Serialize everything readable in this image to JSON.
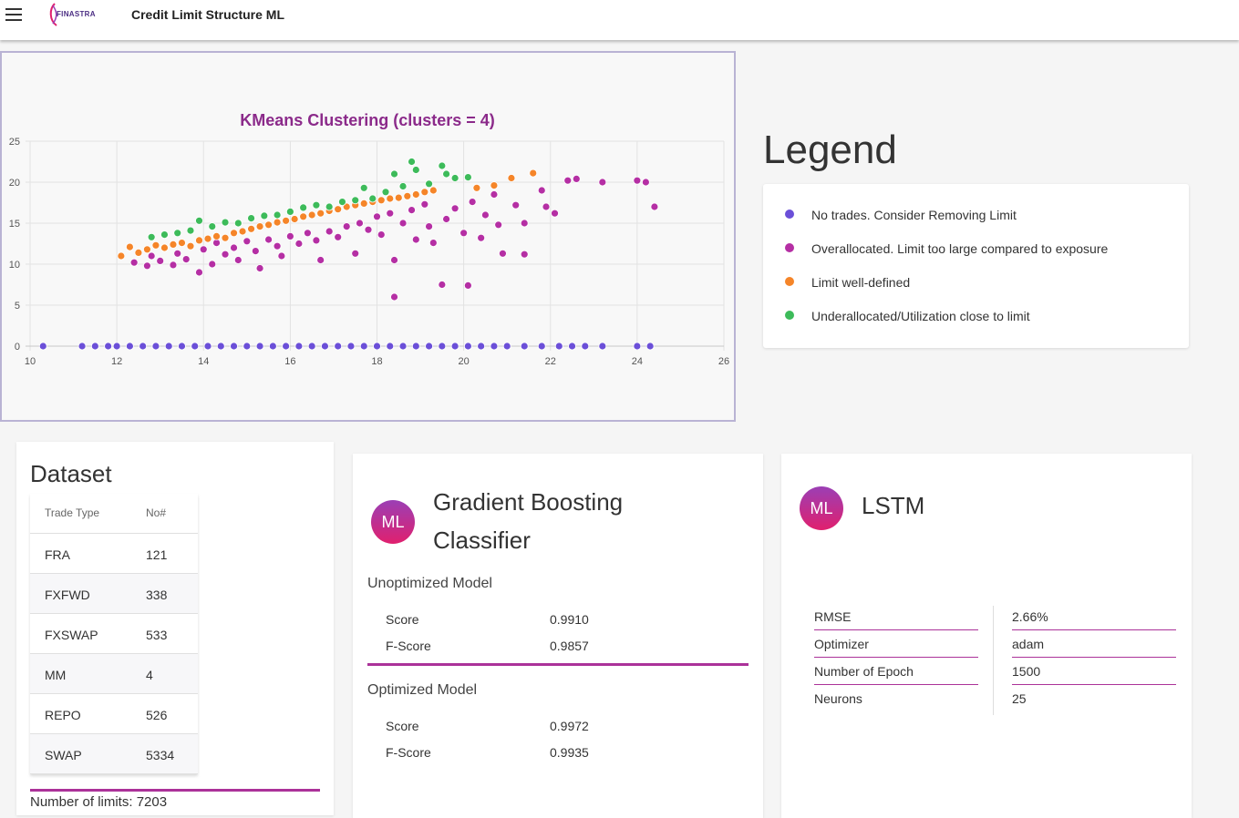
{
  "header": {
    "logo_text": "FINASTRA",
    "title": "Credit Limit Structure ML"
  },
  "chart_data": {
    "type": "scatter",
    "title": "KMeans Clustering (clusters = 4)",
    "xlabel": "",
    "ylabel": "",
    "xlim": [
      10,
      26
    ],
    "ylim": [
      0,
      25
    ],
    "x_ticks": [
      "10",
      "12",
      "14",
      "16",
      "18",
      "20",
      "22",
      "24",
      "26"
    ],
    "y_ticks": [
      "0",
      "5",
      "10",
      "15",
      "20",
      "25"
    ],
    "grid": true,
    "series": [
      {
        "name": "No trades. Consider Removing Limit",
        "color": "#6b4fd8",
        "points": [
          [
            10.3,
            0
          ],
          [
            11.2,
            0
          ],
          [
            11.5,
            0
          ],
          [
            11.8,
            0
          ],
          [
            12.0,
            0
          ],
          [
            12.3,
            0
          ],
          [
            12.6,
            0
          ],
          [
            12.9,
            0
          ],
          [
            13.2,
            0
          ],
          [
            13.5,
            0
          ],
          [
            13.8,
            0
          ],
          [
            14.1,
            0
          ],
          [
            14.4,
            0
          ],
          [
            14.7,
            0
          ],
          [
            15.0,
            0
          ],
          [
            15.3,
            0
          ],
          [
            15.6,
            0
          ],
          [
            15.9,
            0
          ],
          [
            16.2,
            0
          ],
          [
            16.5,
            0
          ],
          [
            16.8,
            0
          ],
          [
            17.1,
            0
          ],
          [
            17.4,
            0
          ],
          [
            17.7,
            0
          ],
          [
            18.0,
            0
          ],
          [
            18.3,
            0
          ],
          [
            18.6,
            0
          ],
          [
            18.9,
            0
          ],
          [
            19.2,
            0
          ],
          [
            19.5,
            0
          ],
          [
            19.8,
            0
          ],
          [
            20.1,
            0
          ],
          [
            20.4,
            0
          ],
          [
            20.7,
            0
          ],
          [
            21.0,
            0
          ],
          [
            21.4,
            0
          ],
          [
            21.8,
            0
          ],
          [
            22.2,
            0
          ],
          [
            22.5,
            0
          ],
          [
            22.8,
            0
          ],
          [
            23.2,
            0
          ],
          [
            24.0,
            0
          ],
          [
            24.3,
            0
          ]
        ]
      },
      {
        "name": "Overallocated. Limit too large compared to exposure",
        "color": "#b52fa4",
        "points": [
          [
            12.4,
            10.2
          ],
          [
            12.7,
            9.8
          ],
          [
            12.8,
            11.0
          ],
          [
            13.0,
            10.4
          ],
          [
            13.1,
            12.0
          ],
          [
            13.3,
            9.9
          ],
          [
            13.4,
            11.3
          ],
          [
            13.6,
            10.6
          ],
          [
            13.7,
            12.2
          ],
          [
            13.9,
            9.0
          ],
          [
            14.0,
            11.8
          ],
          [
            14.2,
            10.0
          ],
          [
            14.3,
            12.6
          ],
          [
            14.5,
            11.2
          ],
          [
            14.7,
            12.0
          ],
          [
            14.8,
            10.5
          ],
          [
            15.0,
            12.8
          ],
          [
            15.2,
            11.6
          ],
          [
            15.3,
            9.5
          ],
          [
            15.5,
            13.0
          ],
          [
            15.7,
            12.2
          ],
          [
            15.8,
            11.0
          ],
          [
            16.0,
            13.4
          ],
          [
            16.2,
            12.5
          ],
          [
            16.4,
            13.8
          ],
          [
            16.6,
            12.9
          ],
          [
            16.7,
            10.5
          ],
          [
            16.9,
            14.0
          ],
          [
            17.1,
            13.3
          ],
          [
            17.3,
            14.6
          ],
          [
            17.5,
            11.3
          ],
          [
            17.6,
            15.0
          ],
          [
            17.8,
            14.2
          ],
          [
            18.0,
            15.8
          ],
          [
            18.1,
            13.6
          ],
          [
            18.3,
            16.2
          ],
          [
            18.4,
            10.5
          ],
          [
            18.4,
            6.0
          ],
          [
            18.6,
            15.0
          ],
          [
            18.8,
            16.6
          ],
          [
            18.9,
            13.0
          ],
          [
            19.1,
            17.3
          ],
          [
            19.2,
            14.6
          ],
          [
            19.3,
            12.6
          ],
          [
            19.5,
            7.5
          ],
          [
            19.6,
            15.5
          ],
          [
            19.8,
            16.8
          ],
          [
            20.0,
            13.8
          ],
          [
            20.1,
            7.4
          ],
          [
            20.2,
            17.6
          ],
          [
            20.4,
            13.2
          ],
          [
            20.5,
            16.0
          ],
          [
            20.7,
            18.5
          ],
          [
            20.8,
            14.8
          ],
          [
            20.9,
            11.3
          ],
          [
            21.2,
            17.2
          ],
          [
            21.4,
            15.0
          ],
          [
            21.4,
            11.2
          ],
          [
            21.8,
            19.0
          ],
          [
            21.9,
            17.0
          ],
          [
            22.1,
            16.2
          ],
          [
            22.4,
            20.2
          ],
          [
            22.6,
            20.4
          ],
          [
            23.2,
            20.0
          ],
          [
            24.0,
            20.2
          ],
          [
            24.2,
            20.0
          ],
          [
            24.4,
            17.0
          ]
        ]
      },
      {
        "name": "Limit well-defined",
        "color": "#f58529",
        "points": [
          [
            12.1,
            11.0
          ],
          [
            12.3,
            12.1
          ],
          [
            12.5,
            11.4
          ],
          [
            12.7,
            11.8
          ],
          [
            12.9,
            12.3
          ],
          [
            13.1,
            12.0
          ],
          [
            13.3,
            12.4
          ],
          [
            13.5,
            12.6
          ],
          [
            13.7,
            12.2
          ],
          [
            13.9,
            12.9
          ],
          [
            14.1,
            13.1
          ],
          [
            14.3,
            13.4
          ],
          [
            14.5,
            13.2
          ],
          [
            14.7,
            13.8
          ],
          [
            14.9,
            14.0
          ],
          [
            15.1,
            14.3
          ],
          [
            15.3,
            14.6
          ],
          [
            15.5,
            14.8
          ],
          [
            15.7,
            15.1
          ],
          [
            15.9,
            15.3
          ],
          [
            16.1,
            15.5
          ],
          [
            16.3,
            15.8
          ],
          [
            16.5,
            16.0
          ],
          [
            16.7,
            16.2
          ],
          [
            16.9,
            16.5
          ],
          [
            17.1,
            16.7
          ],
          [
            17.3,
            17.0
          ],
          [
            17.5,
            17.2
          ],
          [
            17.7,
            17.4
          ],
          [
            17.9,
            17.6
          ],
          [
            18.1,
            17.8
          ],
          [
            18.3,
            18.0
          ],
          [
            18.5,
            18.1
          ],
          [
            18.7,
            18.3
          ],
          [
            18.9,
            18.5
          ],
          [
            19.1,
            18.8
          ],
          [
            19.3,
            19.0
          ],
          [
            20.3,
            19.3
          ],
          [
            20.7,
            19.6
          ],
          [
            21.1,
            20.5
          ],
          [
            21.6,
            21.1
          ]
        ]
      },
      {
        "name": "Underallocated/Utilization close to limit",
        "color": "#3dbb5a",
        "points": [
          [
            12.8,
            13.3
          ],
          [
            13.1,
            13.6
          ],
          [
            13.4,
            13.8
          ],
          [
            13.7,
            14.1
          ],
          [
            13.9,
            15.3
          ],
          [
            14.2,
            14.6
          ],
          [
            14.5,
            15.1
          ],
          [
            14.8,
            15.0
          ],
          [
            15.1,
            15.6
          ],
          [
            15.4,
            15.9
          ],
          [
            15.7,
            16.0
          ],
          [
            16.0,
            16.4
          ],
          [
            16.3,
            16.9
          ],
          [
            16.6,
            17.2
          ],
          [
            16.9,
            17.0
          ],
          [
            17.2,
            17.6
          ],
          [
            17.5,
            17.8
          ],
          [
            17.7,
            19.3
          ],
          [
            17.9,
            18.0
          ],
          [
            18.2,
            18.8
          ],
          [
            18.4,
            21.0
          ],
          [
            18.6,
            19.5
          ],
          [
            18.8,
            22.5
          ],
          [
            18.9,
            21.5
          ],
          [
            19.2,
            19.8
          ],
          [
            19.5,
            22.0
          ],
          [
            19.6,
            21.0
          ],
          [
            19.8,
            20.5
          ],
          [
            20.1,
            20.6
          ]
        ]
      }
    ]
  },
  "legend": {
    "title": "Legend",
    "items": [
      {
        "label": "No trades. Consider Removing Limit",
        "color": "#6b4fd8"
      },
      {
        "label": "Overallocated. Limit too large compared to exposure",
        "color": "#b52fa4"
      },
      {
        "label": "Limit well-defined",
        "color": "#f58529"
      },
      {
        "label": "Underallocated/Utilization close to limit",
        "color": "#3dbb5a"
      }
    ]
  },
  "dataset": {
    "title": "Dataset",
    "headers": [
      "Trade Type",
      "No#"
    ],
    "rows": [
      [
        "FRA",
        "121"
      ],
      [
        "FXFWD",
        "338"
      ],
      [
        "FXSWAP",
        "533"
      ],
      [
        "MM",
        "4"
      ],
      [
        "REPO",
        "526"
      ],
      [
        "SWAP",
        "5334"
      ]
    ],
    "total_label": "Number of limits: 7203"
  },
  "gbc": {
    "avatar": "ML",
    "title": "Gradient Boosting Classifier",
    "unoptimized": {
      "label": "Unoptimized Model",
      "score_label": "Score",
      "score": "0.9910",
      "fscore_label": "F-Score",
      "fscore": "0.9857"
    },
    "optimized": {
      "label": "Optimized Model",
      "score_label": "Score",
      "score": "0.9972",
      "fscore_label": "F-Score",
      "fscore": "0.9935"
    }
  },
  "lstm": {
    "avatar": "ML",
    "title": "LSTM",
    "rows": [
      {
        "key": "RMSE",
        "value": "2.66%"
      },
      {
        "key": "Optimizer",
        "value": "adam"
      },
      {
        "key": "Number of Epoch",
        "value": "1500"
      },
      {
        "key": "Neurons",
        "value": "25"
      }
    ]
  }
}
